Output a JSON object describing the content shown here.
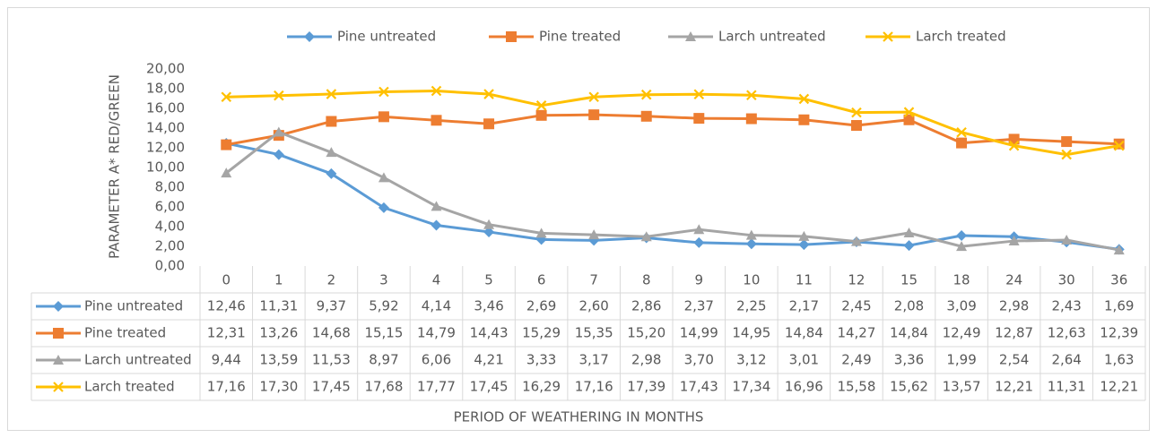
{
  "chart_data": {
    "type": "line",
    "y_axis_label": "PARAMETER A* RED/GREEN",
    "x_axis_label": "PERIOD OF WEATHERING IN MONTHS",
    "categories": [
      "0",
      "1",
      "2",
      "3",
      "4",
      "5",
      "6",
      "7",
      "8",
      "9",
      "10",
      "11",
      "12",
      "15",
      "18",
      "24",
      "30",
      "36"
    ],
    "ylim": [
      0,
      20
    ],
    "yticks": [
      {
        "value": 0,
        "label": "0,00"
      },
      {
        "value": 2,
        "label": "2,00"
      },
      {
        "value": 4,
        "label": "4,00"
      },
      {
        "value": 6,
        "label": "6,00"
      },
      {
        "value": 8,
        "label": "8,00"
      },
      {
        "value": 10,
        "label": "10,00"
      },
      {
        "value": 12,
        "label": "12,00"
      },
      {
        "value": 14,
        "label": "14,00"
      },
      {
        "value": 16,
        "label": "16,00"
      },
      {
        "value": 18,
        "label": "18,00"
      },
      {
        "value": 20,
        "label": "20,00"
      }
    ],
    "grid": false,
    "legend": "top",
    "series": [
      {
        "name": "Pine untreated",
        "color": "#5b9bd5",
        "marker": "diamond",
        "values": [
          12.46,
          11.31,
          9.37,
          5.92,
          4.14,
          3.46,
          2.69,
          2.6,
          2.86,
          2.37,
          2.25,
          2.17,
          2.45,
          2.08,
          3.09,
          2.98,
          2.43,
          1.69
        ],
        "value_labels": [
          "12,46",
          "11,31",
          "9,37",
          "5,92",
          "4,14",
          "3,46",
          "2,69",
          "2,60",
          "2,86",
          "2,37",
          "2,25",
          "2,17",
          "2,45",
          "2,08",
          "3,09",
          "2,98",
          "2,43",
          "1,69"
        ]
      },
      {
        "name": "Pine treated",
        "color": "#ed7d31",
        "marker": "square",
        "values": [
          12.31,
          13.26,
          14.68,
          15.15,
          14.79,
          14.43,
          15.29,
          15.35,
          15.2,
          14.99,
          14.95,
          14.84,
          14.27,
          14.84,
          12.49,
          12.87,
          12.63,
          12.39
        ],
        "value_labels": [
          "12,31",
          "13,26",
          "14,68",
          "15,15",
          "14,79",
          "14,43",
          "15,29",
          "15,35",
          "15,20",
          "14,99",
          "14,95",
          "14,84",
          "14,27",
          "14,84",
          "12,49",
          "12,87",
          "12,63",
          "12,39"
        ]
      },
      {
        "name": "Larch untreated",
        "color": "#a5a5a5",
        "marker": "triangle",
        "values": [
          9.44,
          13.59,
          11.53,
          8.97,
          6.06,
          4.21,
          3.33,
          3.17,
          2.98,
          3.7,
          3.12,
          3.01,
          2.49,
          3.36,
          1.99,
          2.54,
          2.64,
          1.63
        ],
        "value_labels": [
          "9,44",
          "13,59",
          "11,53",
          "8,97",
          "6,06",
          "4,21",
          "3,33",
          "3,17",
          "2,98",
          "3,70",
          "3,12",
          "3,01",
          "2,49",
          "3,36",
          "1,99",
          "2,54",
          "2,64",
          "1,63"
        ]
      },
      {
        "name": "Larch treated",
        "color": "#ffc000",
        "marker": "x",
        "values": [
          17.16,
          17.3,
          17.45,
          17.68,
          17.77,
          17.45,
          16.29,
          17.16,
          17.39,
          17.43,
          17.34,
          16.96,
          15.58,
          15.62,
          13.57,
          12.21,
          11.31,
          12.21
        ],
        "value_labels": [
          "17,16",
          "17,30",
          "17,45",
          "17,68",
          "17,77",
          "17,45",
          "16,29",
          "17,16",
          "17,39",
          "17,43",
          "17,34",
          "16,96",
          "15,58",
          "15,62",
          "13,57",
          "12,21",
          "11,31",
          "12,21"
        ]
      }
    ]
  }
}
